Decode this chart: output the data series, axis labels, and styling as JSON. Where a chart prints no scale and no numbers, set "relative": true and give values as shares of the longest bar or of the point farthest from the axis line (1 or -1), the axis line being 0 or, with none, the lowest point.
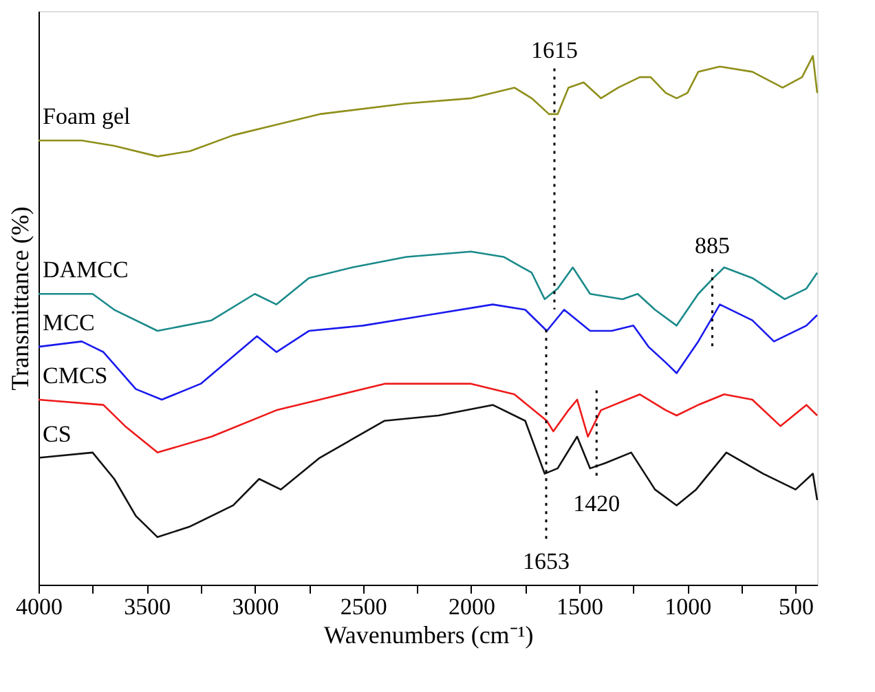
{
  "chart_data": {
    "type": "line",
    "relative": true,
    "xlabel": "Wavenumbers (cm⁻¹)",
    "ylabel": "Transmittance (%)",
    "xlim": [
      4000,
      400
    ],
    "xticks": [
      4000,
      {
        "value": 3750,
        "label": null
      },
      3500,
      {
        "value": 3250,
        "label": null
      },
      3000,
      {
        "value": 2750,
        "label": null
      },
      2500,
      {
        "value": 2250,
        "label": null
      },
      2000,
      {
        "value": 1750,
        "label": null
      },
      1500,
      {
        "value": 1250,
        "label": null
      },
      1000,
      {
        "value": 750,
        "label": null
      },
      500
    ],
    "tick_labels": "x",
    "grid": false,
    "marker": "none",
    "line_style": "solid",
    "series": [
      {
        "name": "Foam gel",
        "color": "#8f8f1a",
        "x": [
          4000,
          3800,
          3650,
          3450,
          3300,
          3100,
          2900,
          2700,
          2300,
          2000,
          1800,
          1720,
          1640,
          1600,
          1550,
          1480,
          1400,
          1320,
          1220,
          1170,
          1100,
          1050,
          1000,
          950,
          850,
          700,
          560,
          470,
          420,
          400
        ],
        "values": [
          0.84,
          0.84,
          0.83,
          0.81,
          0.82,
          0.85,
          0.87,
          0.89,
          0.91,
          0.92,
          0.94,
          0.92,
          0.89,
          0.89,
          0.94,
          0.95,
          0.92,
          0.94,
          0.96,
          0.96,
          0.93,
          0.92,
          0.93,
          0.97,
          0.98,
          0.97,
          0.94,
          0.96,
          1.0,
          0.93
        ]
      },
      {
        "name": "DAMCC",
        "color": "#1a8a8a",
        "x": [
          4000,
          3750,
          3650,
          3450,
          3200,
          3000,
          2900,
          2750,
          2550,
          2300,
          2000,
          1850,
          1720,
          1660,
          1600,
          1530,
          1450,
          1300,
          1230,
          1150,
          1050,
          950,
          880,
          830,
          700,
          550,
          450,
          400
        ],
        "values": [
          0.55,
          0.55,
          0.52,
          0.48,
          0.5,
          0.55,
          0.53,
          0.58,
          0.6,
          0.62,
          0.63,
          0.62,
          0.59,
          0.54,
          0.56,
          0.6,
          0.55,
          0.54,
          0.55,
          0.52,
          0.49,
          0.55,
          0.58,
          0.6,
          0.58,
          0.54,
          0.56,
          0.59
        ]
      },
      {
        "name": "MCC",
        "color": "#1a1aee",
        "x": [
          4000,
          3800,
          3700,
          3550,
          3430,
          3250,
          2990,
          2900,
          2750,
          2500,
          2200,
          1900,
          1750,
          1650,
          1570,
          1450,
          1350,
          1250,
          1180,
          1100,
          1050,
          950,
          850,
          700,
          600,
          450,
          400
        ],
        "values": [
          0.45,
          0.46,
          0.44,
          0.37,
          0.35,
          0.38,
          0.47,
          0.44,
          0.48,
          0.49,
          0.51,
          0.53,
          0.52,
          0.48,
          0.52,
          0.48,
          0.48,
          0.49,
          0.45,
          0.42,
          0.4,
          0.46,
          0.53,
          0.5,
          0.46,
          0.49,
          0.51
        ]
      },
      {
        "name": "CMCS",
        "color": "#ee1a1a",
        "x": [
          4000,
          3700,
          3600,
          3450,
          3200,
          2900,
          2700,
          2400,
          2000,
          1800,
          1650,
          1620,
          1550,
          1510,
          1460,
          1400,
          1220,
          1100,
          1050,
          950,
          830,
          700,
          570,
          450,
          400
        ],
        "values": [
          0.35,
          0.34,
          0.3,
          0.25,
          0.28,
          0.33,
          0.35,
          0.38,
          0.38,
          0.36,
          0.31,
          0.29,
          0.33,
          0.35,
          0.28,
          0.33,
          0.36,
          0.33,
          0.32,
          0.34,
          0.36,
          0.35,
          0.3,
          0.34,
          0.32
        ]
      },
      {
        "name": "CS",
        "color": "#111111",
        "x": [
          4000,
          3750,
          3650,
          3550,
          3450,
          3300,
          3100,
          2980,
          2880,
          2700,
          2400,
          2150,
          1900,
          1750,
          1660,
          1600,
          1510,
          1450,
          1380,
          1260,
          1150,
          1050,
          960,
          820,
          650,
          500,
          420,
          400
        ],
        "values": [
          0.24,
          0.25,
          0.2,
          0.13,
          0.09,
          0.11,
          0.15,
          0.2,
          0.18,
          0.24,
          0.31,
          0.32,
          0.34,
          0.31,
          0.21,
          0.22,
          0.28,
          0.22,
          0.23,
          0.25,
          0.18,
          0.15,
          0.18,
          0.25,
          0.21,
          0.18,
          0.21,
          0.16
        ]
      }
    ],
    "ref_lines": [
      {
        "axis": "x",
        "value": 1615,
        "label": "1615",
        "line_style": "dotted"
      },
      {
        "axis": "x",
        "value": 885,
        "label": "885",
        "line_style": "dotted"
      },
      {
        "axis": "x",
        "value": 1653,
        "label": "1653",
        "line_style": "dotted"
      },
      {
        "axis": "x",
        "value": 1420,
        "label": "1420",
        "line_style": "dotted"
      }
    ]
  }
}
